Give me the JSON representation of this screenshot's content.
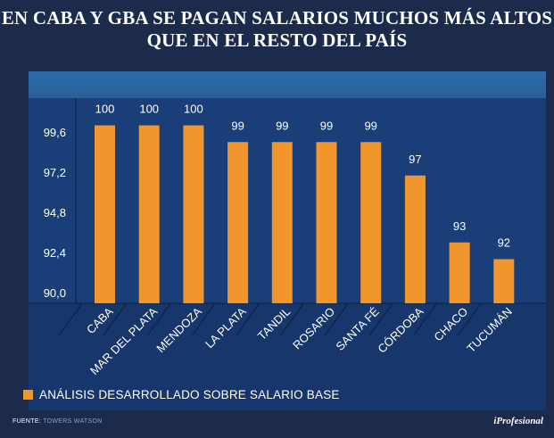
{
  "title_line1": "EN CABA Y GBA SE PAGAN SALARIOS MUCHOS MÁS ALTOS",
  "title_line2": "QUE EN EL RESTO DEL PAÍS",
  "legend_label": "ANÁLISIS DESARROLLADO SOBRE SALARIO BASE",
  "source_label": "FUENTE:",
  "source_value": "TOWERS WATSON",
  "brand": "iProfesional",
  "colors": {
    "bar": "#f0962c",
    "background": "#1c2b4b",
    "panel": "#17366b"
  },
  "chart_data": {
    "type": "bar",
    "title": "EN CABA Y GBA SE PAGAN SALARIOS MUCHOS MÁS ALTOS QUE EN EL RESTO DEL PAÍS",
    "categories": [
      "CABA",
      "MAR DEL PLATA",
      "MENDOZA",
      "LA PLATA",
      "TANDIL",
      "ROSARIO",
      "SANTA FÉ",
      "CÓRDOBA",
      "CHACO",
      "TUCUMÁN"
    ],
    "values": [
      100,
      100,
      100,
      99,
      99,
      99,
      99,
      97,
      93,
      92
    ],
    "value_labels": [
      "100",
      "100",
      "100",
      "99",
      "99",
      "99",
      "99",
      "97",
      "93",
      "92"
    ],
    "plotted_values": [
      100,
      100,
      100,
      99,
      99,
      99,
      99,
      97,
      93,
      92
    ],
    "yticks": [
      90.0,
      92.4,
      94.8,
      97.2,
      99.6
    ],
    "ytick_labels": [
      "90,0",
      "92,4",
      "94,8",
      "97,2",
      "99,6"
    ],
    "ylim": [
      90,
      102
    ],
    "xlabel": "",
    "ylabel": "",
    "series_name": "ANÁLISIS DESARROLLADO SOBRE SALARIO BASE"
  }
}
